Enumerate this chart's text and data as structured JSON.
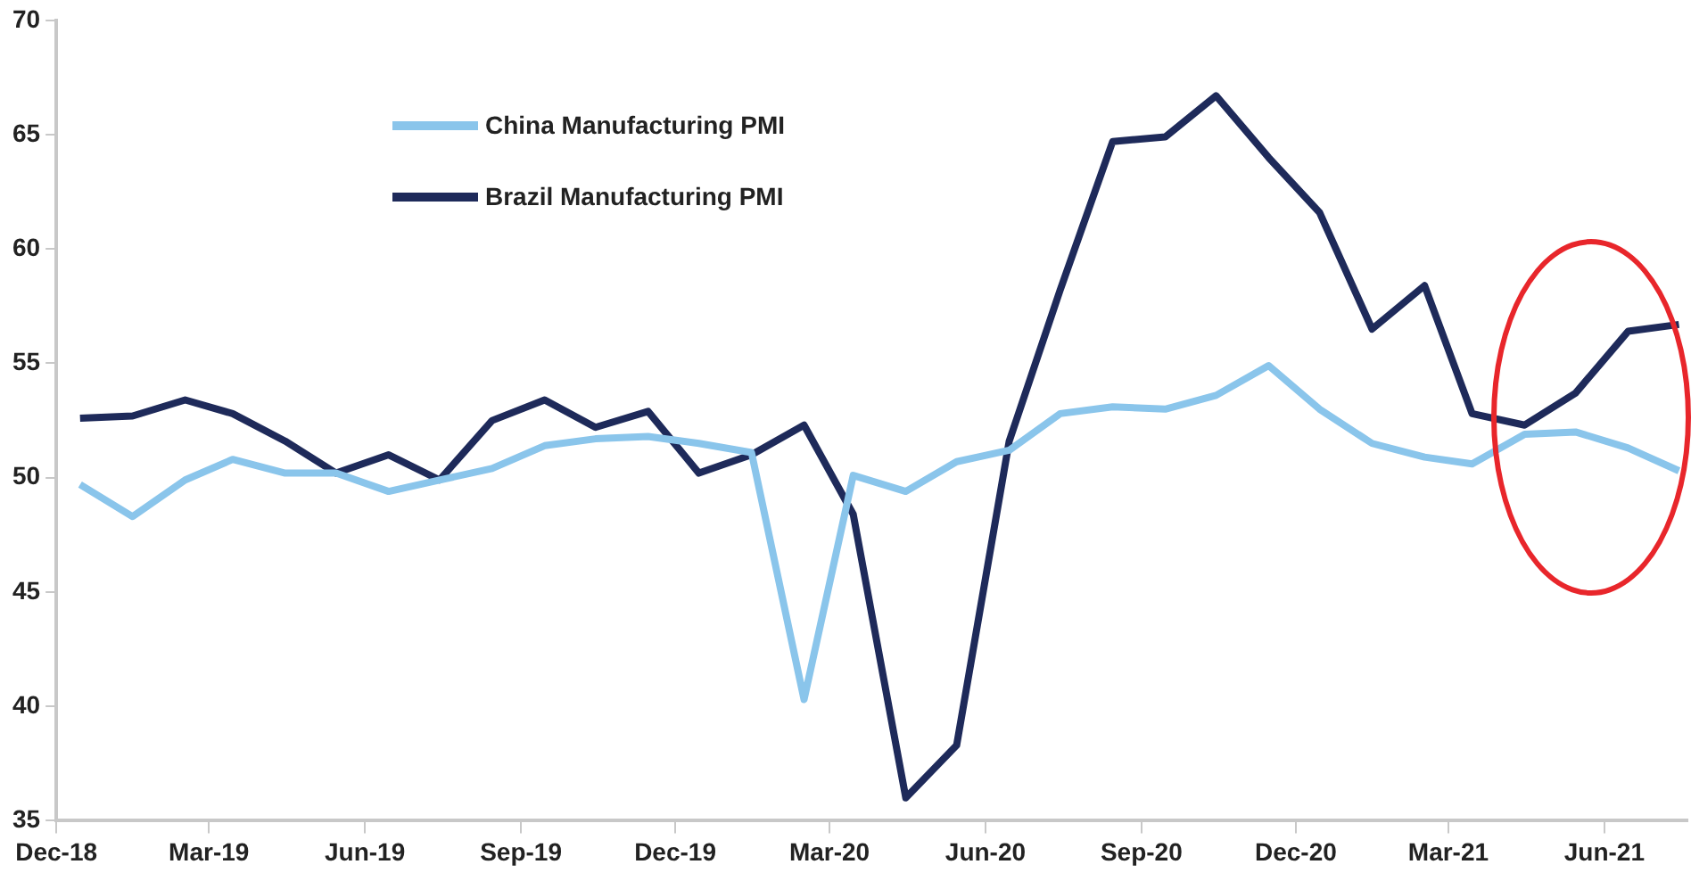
{
  "chart_data": {
    "type": "line",
    "x": [
      "2018-12-15",
      "2019-01-15",
      "2019-02-15",
      "2019-03-15",
      "2019-04-15",
      "2019-05-15",
      "2019-06-15",
      "2019-07-15",
      "2019-08-15",
      "2019-09-15",
      "2019-10-15",
      "2019-11-15",
      "2019-12-15",
      "2020-01-15",
      "2020-02-15",
      "2020-03-15",
      "2020-04-15",
      "2020-05-15",
      "2020-06-15",
      "2020-07-15",
      "2020-08-15",
      "2020-09-15",
      "2020-10-15",
      "2020-11-15",
      "2020-12-15",
      "2021-01-15",
      "2021-02-15",
      "2021-03-15",
      "2021-04-15",
      "2021-05-15",
      "2021-06-15",
      "2021-07-15"
    ],
    "series": [
      {
        "name": "China Manufacturing PMI",
        "color": "#8ac5eb",
        "values": [
          49.7,
          48.3,
          49.9,
          50.8,
          50.2,
          50.2,
          49.4,
          49.9,
          50.4,
          51.4,
          51.7,
          51.8,
          51.5,
          51.1,
          40.3,
          50.1,
          49.4,
          50.7,
          51.2,
          52.8,
          53.1,
          53.0,
          53.6,
          54.9,
          53.0,
          51.5,
          50.9,
          50.6,
          51.9,
          52.0,
          51.3,
          50.3
        ]
      },
      {
        "name": "Brazil Manufacturing PMI",
        "color": "#1e2a5a",
        "values": [
          52.6,
          52.7,
          53.4,
          52.8,
          51.6,
          50.2,
          51.0,
          49.9,
          52.5,
          53.4,
          52.2,
          52.9,
          50.2,
          51.0,
          52.3,
          48.4,
          36.0,
          38.3,
          51.6,
          58.2,
          64.7,
          64.9,
          66.7,
          64.0,
          61.6,
          56.5,
          58.4,
          52.8,
          52.3,
          53.7,
          56.4,
          56.7
        ]
      }
    ],
    "xlim": [
      "2018-12-01",
      "2021-07-20"
    ],
    "xticks": [
      {
        "value": "2018-12-01",
        "label": "Dec-18"
      },
      {
        "value": "2019-03-01",
        "label": "Mar-19"
      },
      {
        "value": "2019-06-01",
        "label": "Jun-19"
      },
      {
        "value": "2019-09-01",
        "label": "Sep-19"
      },
      {
        "value": "2019-12-01",
        "label": "Dec-19"
      },
      {
        "value": "2020-03-01",
        "label": "Mar-20"
      },
      {
        "value": "2020-06-01",
        "label": "Jun-20"
      },
      {
        "value": "2020-09-01",
        "label": "Sep-20"
      },
      {
        "value": "2020-12-01",
        "label": "Dec-20"
      },
      {
        "value": "2021-03-01",
        "label": "Mar-21"
      },
      {
        "value": "2021-06-01",
        "label": "Jun-21"
      }
    ],
    "ylim": [
      35,
      70
    ],
    "yticks": [
      35,
      40,
      45,
      50,
      55,
      60,
      65,
      70
    ],
    "grid": false,
    "legend": "top left",
    "marker": "none",
    "line_style": "solid"
  }
}
